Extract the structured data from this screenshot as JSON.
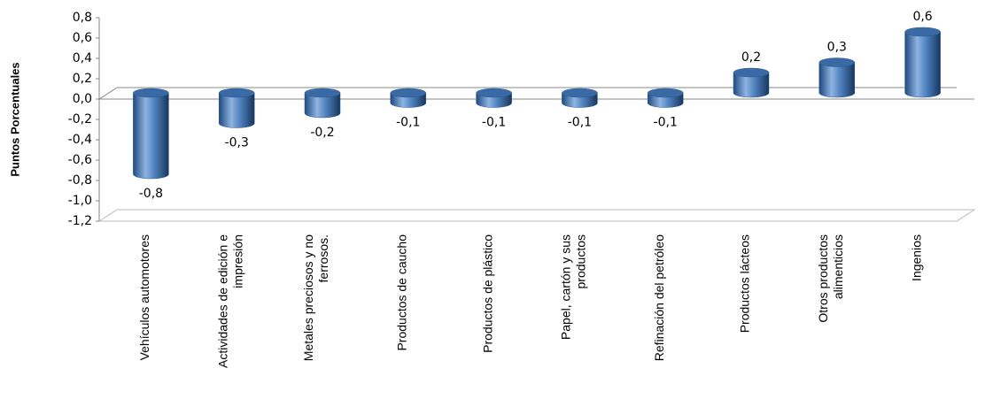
{
  "chart_data": {
    "type": "bar",
    "y_label": "Puntos Porcentuales",
    "categories": [
      [
        "Vehículos automotores"
      ],
      [
        "Actividades de edición e",
        "impresión"
      ],
      [
        "Metales preciosos y no",
        "ferrosos."
      ],
      [
        "Productos de caucho"
      ],
      [
        "Productos de plástico"
      ],
      [
        "Papel, cartón y sus",
        "productos"
      ],
      [
        "Refinación del petróleo"
      ],
      [
        "Productos lácteos"
      ],
      [
        "Otros productos",
        "alimenticios"
      ],
      [
        "Ingenios"
      ]
    ],
    "values": [
      -0.8,
      -0.3,
      -0.2,
      -0.1,
      -0.1,
      -0.1,
      -0.1,
      0.2,
      0.3,
      0.6
    ],
    "value_labels": [
      "-0,8",
      "-0,3",
      "-0,2",
      "-0,1",
      "-0,1",
      "-0,1",
      "-0,1",
      "0,2",
      "0,3",
      "0,6"
    ],
    "color": "#4f81bd",
    "ylim": [
      -1.2,
      0.8
    ],
    "yticks": [
      {
        "value": -1.2,
        "label": "-1,2"
      },
      {
        "value": -1.0,
        "label": "-1,0"
      },
      {
        "value": -0.8,
        "label": "-0,8"
      },
      {
        "value": -0.6,
        "label": "-0,6"
      },
      {
        "value": -0.4,
        "label": "-0,4"
      },
      {
        "value": -0.2,
        "label": "-0,2"
      },
      {
        "value": 0.0,
        "label": "0,0"
      },
      {
        "value": 0.2,
        "label": "0,2"
      },
      {
        "value": 0.4,
        "label": "0,4"
      },
      {
        "value": 0.6,
        "label": "0,6"
      },
      {
        "value": 0.8,
        "label": "0,8"
      }
    ]
  }
}
